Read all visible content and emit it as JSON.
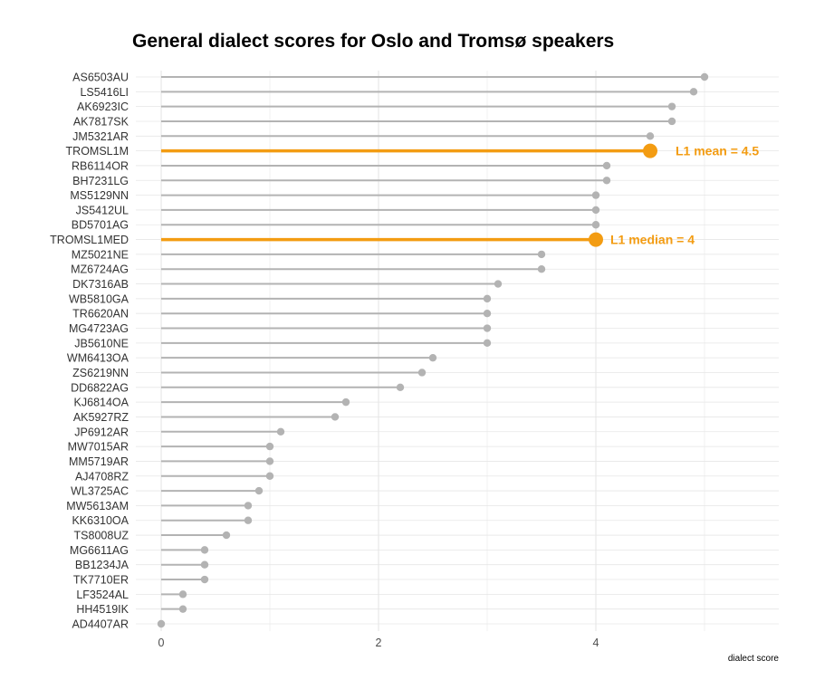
{
  "chart_data": {
    "type": "lollipop",
    "title": "General dialect scores for Oslo and Tromsø speakers",
    "xlabel": "dialect score",
    "ylabel": "",
    "xlim": [
      0,
      5.65
    ],
    "xticks": [
      0,
      2,
      4
    ],
    "grid": true,
    "base_color": "#b3b3b3",
    "highlight_color": "#f39c12",
    "categories": [
      "AS6503AU",
      "LS5416LI",
      "AK6923IC",
      "AK7817SK",
      "JM5321AR",
      "TROMSL1M",
      "RB6114OR",
      "BH7231LG",
      "MS5129NN",
      "JS5412UL",
      "BD5701AG",
      "TROMSL1MED",
      "MZ5021NE",
      "MZ6724AG",
      "DK7316AB",
      "WB5810GA",
      "TR6620AN",
      "MG4723AG",
      "JB5610NE",
      "WM6413OA",
      "ZS6219NN",
      "DD6822AG",
      "KJ6814OA",
      "AK5927RZ",
      "JP6912AR",
      "MW7015AR",
      "MM5719AR",
      "AJ4708RZ",
      "WL3725AC",
      "MW5613AM",
      "KK6310OA",
      "TS8008UZ",
      "MG6611AG",
      "BB1234JA",
      "TK7710ER",
      "LF3524AL",
      "HH4519IK",
      "AD4407AR"
    ],
    "values": [
      5.0,
      4.9,
      4.7,
      4.7,
      4.5,
      4.5,
      4.1,
      4.1,
      4.0,
      4.0,
      4.0,
      4.0,
      3.5,
      3.5,
      3.1,
      3.0,
      3.0,
      3.0,
      3.0,
      2.5,
      2.4,
      2.2,
      1.7,
      1.6,
      1.1,
      1.0,
      1.0,
      1.0,
      0.9,
      0.8,
      0.8,
      0.6,
      0.4,
      0.4,
      0.4,
      0.2,
      0.2,
      0.0
    ],
    "highlights": [
      {
        "category": "TROMSL1M",
        "label": "L1 mean = 4.5"
      },
      {
        "category": "TROMSL1MED",
        "label": "L1 median = 4"
      }
    ]
  }
}
